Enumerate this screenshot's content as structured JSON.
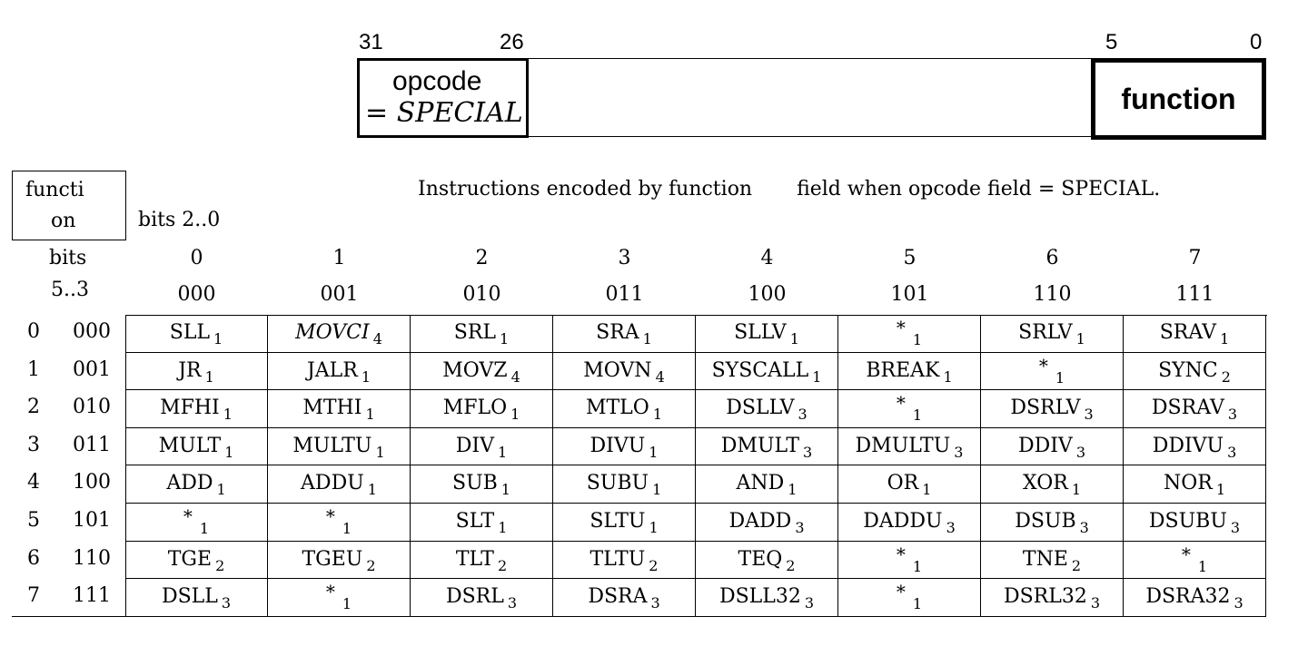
{
  "format": {
    "bit_labels": [
      "31",
      "26",
      "5",
      "0"
    ],
    "opcode_line1": "opcode",
    "opcode_eq": "= ",
    "opcode_line2": "SPECIAL",
    "function_label": "function"
  },
  "table": {
    "corner_line1": "functi",
    "corner_line2": "on",
    "bits_col_label": "bits 2..0",
    "bits_row_label1": "bits",
    "bits_row_label2": "5..3",
    "caption_part1": "Instructions encoded by function",
    "caption_part2": "field when opcode field = SPECIAL.",
    "col_dec": [
      "0",
      "1",
      "2",
      "3",
      "4",
      "5",
      "6",
      "7"
    ],
    "col_bin": [
      "000",
      "001",
      "010",
      "011",
      "100",
      "101",
      "110",
      "111"
    ],
    "row_dec": [
      "0",
      "1",
      "2",
      "3",
      "4",
      "5",
      "6",
      "7"
    ],
    "row_bin": [
      "000",
      "001",
      "010",
      "011",
      "100",
      "101",
      "110",
      "111"
    ],
    "rows": [
      [
        {
          "m": "SLL",
          "n": "1"
        },
        {
          "m": "MOVCI",
          "n": "4",
          "italic": true
        },
        {
          "m": "SRL",
          "n": "1"
        },
        {
          "m": "SRA",
          "n": "1"
        },
        {
          "m": "SLLV",
          "n": "1"
        },
        {
          "m": "*",
          "n": "1"
        },
        {
          "m": "SRLV",
          "n": "1"
        },
        {
          "m": "SRAV",
          "n": "1"
        }
      ],
      [
        {
          "m": "JR",
          "n": "1"
        },
        {
          "m": "JALR",
          "n": "1"
        },
        {
          "m": "MOVZ",
          "n": "4"
        },
        {
          "m": "MOVN",
          "n": "4"
        },
        {
          "m": "SYSCALL",
          "n": "1"
        },
        {
          "m": "BREAK",
          "n": "1"
        },
        {
          "m": "*",
          "n": "1"
        },
        {
          "m": "SYNC",
          "n": "2"
        }
      ],
      [
        {
          "m": "MFHI",
          "n": "1"
        },
        {
          "m": "MTHI",
          "n": "1"
        },
        {
          "m": "MFLO",
          "n": "1"
        },
        {
          "m": "MTLO",
          "n": "1"
        },
        {
          "m": "DSLLV",
          "n": "3"
        },
        {
          "m": "*",
          "n": "1"
        },
        {
          "m": "DSRLV",
          "n": "3"
        },
        {
          "m": "DSRAV",
          "n": "3"
        }
      ],
      [
        {
          "m": "MULT",
          "n": "1"
        },
        {
          "m": "MULTU",
          "n": "1"
        },
        {
          "m": "DIV",
          "n": "1"
        },
        {
          "m": "DIVU",
          "n": "1"
        },
        {
          "m": "DMULT",
          "n": "3"
        },
        {
          "m": "DMULTU",
          "n": "3"
        },
        {
          "m": "DDIV",
          "n": "3"
        },
        {
          "m": "DDIVU",
          "n": "3"
        }
      ],
      [
        {
          "m": "ADD",
          "n": "1"
        },
        {
          "m": "ADDU",
          "n": "1"
        },
        {
          "m": "SUB",
          "n": "1"
        },
        {
          "m": "SUBU",
          "n": "1"
        },
        {
          "m": "AND",
          "n": "1"
        },
        {
          "m": "OR",
          "n": "1"
        },
        {
          "m": "XOR",
          "n": "1"
        },
        {
          "m": "NOR",
          "n": "1"
        }
      ],
      [
        {
          "m": "*",
          "n": "1"
        },
        {
          "m": "*",
          "n": "1"
        },
        {
          "m": "SLT",
          "n": "1"
        },
        {
          "m": "SLTU",
          "n": "1"
        },
        {
          "m": "DADD",
          "n": "3"
        },
        {
          "m": "DADDU",
          "n": "3"
        },
        {
          "m": "DSUB",
          "n": "3"
        },
        {
          "m": "DSUBU",
          "n": "3"
        }
      ],
      [
        {
          "m": "TGE",
          "n": "2"
        },
        {
          "m": "TGEU",
          "n": "2"
        },
        {
          "m": "TLT",
          "n": "2"
        },
        {
          "m": "TLTU",
          "n": "2"
        },
        {
          "m": "TEQ",
          "n": "2"
        },
        {
          "m": "*",
          "n": "1"
        },
        {
          "m": "TNE",
          "n": "2"
        },
        {
          "m": "*",
          "n": "1"
        }
      ],
      [
        {
          "m": "DSLL",
          "n": "3"
        },
        {
          "m": "*",
          "n": "1"
        },
        {
          "m": "DSRL",
          "n": "3"
        },
        {
          "m": "DSRA",
          "n": "3"
        },
        {
          "m": "DSLL32",
          "n": "3"
        },
        {
          "m": "*",
          "n": "1"
        },
        {
          "m": "DSRL32",
          "n": "3"
        },
        {
          "m": "DSRA32",
          "n": "3"
        }
      ]
    ]
  }
}
